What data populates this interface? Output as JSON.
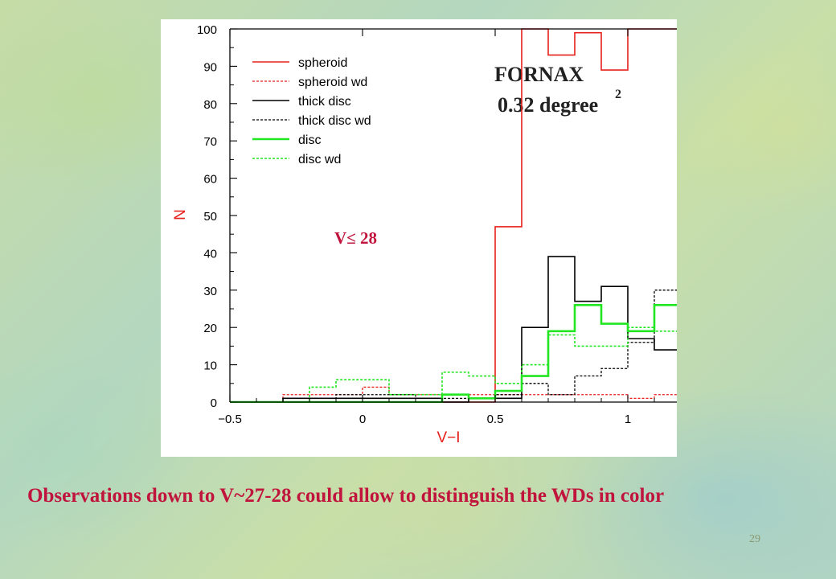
{
  "chart_data": {
    "type": "line",
    "title": "FORNAX",
    "subtitle": "0.32 degree",
    "subtitle_superscript": "2",
    "annotation": "V≤ 28",
    "xlabel": "V−I",
    "ylabel": "N",
    "xlim": [
      -0.5,
      1.2
    ],
    "ylim": [
      0,
      100
    ],
    "xticks": [
      "−0.5",
      "0",
      "0.5",
      "1"
    ],
    "yticks": [
      "0",
      "10",
      "20",
      "30",
      "40",
      "50",
      "60",
      "70",
      "80",
      "90",
      "100"
    ],
    "grid": false,
    "legend_position": "top-left",
    "bin_edges": [
      -0.5,
      -0.4,
      -0.3,
      -0.2,
      -0.1,
      0.0,
      0.1,
      0.2,
      0.3,
      0.4,
      0.5,
      0.6,
      0.7,
      0.8,
      0.9,
      1.0,
      1.1,
      1.2
    ],
    "series": [
      {
        "name": "spheroid",
        "color": "#e8201c",
        "dashed": false,
        "values": [
          0,
          0,
          0,
          0,
          0,
          0,
          0,
          0,
          0,
          0,
          47,
          100,
          93,
          99,
          89,
          100,
          100
        ]
      },
      {
        "name": "spheroid wd",
        "color": "#e8201c",
        "dashed": true,
        "values": [
          0,
          0,
          2,
          2,
          2,
          4,
          2,
          2,
          2,
          2,
          2,
          2,
          2,
          2,
          2,
          1,
          2
        ]
      },
      {
        "name": "thick disc",
        "color": "#000000",
        "dashed": false,
        "values": [
          0,
          0,
          1,
          1,
          1,
          1,
          1,
          1,
          0,
          1,
          1,
          20,
          39,
          27,
          31,
          17,
          14
        ]
      },
      {
        "name": "thick disc wd",
        "color": "#000000",
        "dashed": true,
        "values": [
          0,
          0,
          1,
          1,
          2,
          2,
          2,
          1,
          1,
          1,
          2,
          5,
          2,
          7,
          9,
          16,
          30
        ]
      },
      {
        "name": "disc",
        "color": "#22e622",
        "dashed": false,
        "values": [
          0,
          0,
          0,
          0,
          0,
          0,
          0,
          0,
          2,
          1,
          3,
          7,
          19,
          26,
          21,
          19,
          26
        ]
      },
      {
        "name": "disc wd",
        "color": "#22e622",
        "dashed": true,
        "values": [
          0,
          0,
          0,
          4,
          6,
          6,
          2,
          2,
          8,
          7,
          5,
          10,
          18,
          15,
          15,
          20,
          19
        ]
      }
    ]
  },
  "caption": "Observations down to V~27-28 could allow to distinguish the WDs in color",
  "page_number": "29"
}
